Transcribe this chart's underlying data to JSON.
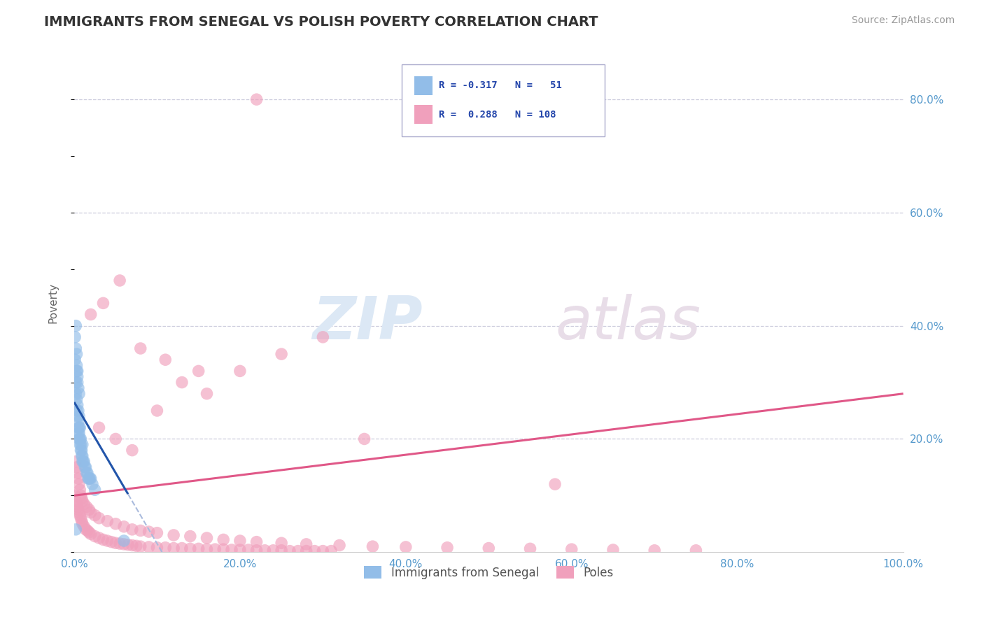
{
  "title": "IMMIGRANTS FROM SENEGAL VS POLISH POVERTY CORRELATION CHART",
  "source": "Source: ZipAtlas.com",
  "ylabel": "Poverty",
  "watermark": "ZIPatlas",
  "legend_label1": "Immigrants from Senegal",
  "legend_label2": "Poles",
  "color_senegal": "#92bde8",
  "color_poles": "#f0a0bc",
  "trendline_senegal": "#2255aa",
  "trendline_poles": "#e05888",
  "trendline_senegal_dashed": "#aabbdd",
  "xlim": [
    0.0,
    1.0
  ],
  "ylim": [
    0.0,
    0.88
  ],
  "xticks": [
    0.0,
    0.2,
    0.4,
    0.6,
    0.8,
    1.0
  ],
  "yticks": [
    0.2,
    0.4,
    0.6,
    0.8
  ],
  "xticklabels": [
    "0.0%",
    "20.0%",
    "40.0%",
    "60.0%",
    "80.0%",
    "100.0%"
  ],
  "yticklabels": [
    "20.0%",
    "40.0%",
    "60.0%",
    "80.0%"
  ],
  "tick_color": "#5599cc",
  "grid_color": "#ccccdd",
  "senegal_x": [
    0.001,
    0.002,
    0.002,
    0.003,
    0.003,
    0.003,
    0.004,
    0.004,
    0.004,
    0.005,
    0.005,
    0.005,
    0.005,
    0.006,
    0.006,
    0.006,
    0.006,
    0.007,
    0.007,
    0.007,
    0.008,
    0.008,
    0.008,
    0.009,
    0.009,
    0.01,
    0.01,
    0.01,
    0.011,
    0.012,
    0.013,
    0.014,
    0.015,
    0.016,
    0.017,
    0.018,
    0.019,
    0.02,
    0.022,
    0.025,
    0.002,
    0.003,
    0.004,
    0.004,
    0.005,
    0.006,
    0.001,
    0.002,
    0.003,
    0.002,
    0.06
  ],
  "senegal_y": [
    0.34,
    0.3,
    0.28,
    0.27,
    0.25,
    0.33,
    0.26,
    0.24,
    0.3,
    0.23,
    0.22,
    0.25,
    0.21,
    0.22,
    0.21,
    0.2,
    0.24,
    0.2,
    0.19,
    0.22,
    0.19,
    0.18,
    0.2,
    0.18,
    0.17,
    0.17,
    0.16,
    0.19,
    0.16,
    0.16,
    0.15,
    0.15,
    0.14,
    0.14,
    0.13,
    0.13,
    0.13,
    0.13,
    0.12,
    0.11,
    0.36,
    0.35,
    0.32,
    0.31,
    0.29,
    0.28,
    0.38,
    0.4,
    0.32,
    0.04,
    0.02
  ],
  "poles_x": [
    0.001,
    0.002,
    0.003,
    0.004,
    0.005,
    0.006,
    0.007,
    0.008,
    0.009,
    0.01,
    0.012,
    0.014,
    0.016,
    0.018,
    0.02,
    0.025,
    0.03,
    0.035,
    0.04,
    0.045,
    0.05,
    0.055,
    0.06,
    0.065,
    0.07,
    0.075,
    0.08,
    0.09,
    0.1,
    0.11,
    0.12,
    0.13,
    0.14,
    0.15,
    0.16,
    0.17,
    0.18,
    0.19,
    0.2,
    0.21,
    0.22,
    0.23,
    0.24,
    0.25,
    0.26,
    0.27,
    0.28,
    0.29,
    0.3,
    0.31,
    0.002,
    0.003,
    0.004,
    0.005,
    0.006,
    0.007,
    0.008,
    0.009,
    0.01,
    0.012,
    0.015,
    0.018,
    0.02,
    0.025,
    0.03,
    0.04,
    0.05,
    0.06,
    0.07,
    0.08,
    0.09,
    0.1,
    0.12,
    0.14,
    0.16,
    0.18,
    0.2,
    0.22,
    0.25,
    0.28,
    0.32,
    0.36,
    0.4,
    0.45,
    0.5,
    0.55,
    0.6,
    0.65,
    0.7,
    0.75,
    0.03,
    0.05,
    0.07,
    0.1,
    0.13,
    0.16,
    0.2,
    0.25,
    0.3,
    0.35,
    0.02,
    0.035,
    0.055,
    0.08,
    0.11,
    0.15,
    0.22,
    0.58
  ],
  "poles_y": [
    0.1,
    0.09,
    0.085,
    0.08,
    0.075,
    0.07,
    0.065,
    0.06,
    0.055,
    0.05,
    0.045,
    0.04,
    0.038,
    0.035,
    0.032,
    0.028,
    0.025,
    0.022,
    0.02,
    0.018,
    0.016,
    0.015,
    0.014,
    0.013,
    0.012,
    0.011,
    0.01,
    0.009,
    0.008,
    0.008,
    0.007,
    0.007,
    0.006,
    0.006,
    0.005,
    0.005,
    0.005,
    0.004,
    0.004,
    0.004,
    0.003,
    0.003,
    0.003,
    0.003,
    0.002,
    0.002,
    0.002,
    0.002,
    0.002,
    0.002,
    0.16,
    0.15,
    0.14,
    0.13,
    0.12,
    0.11,
    0.1,
    0.095,
    0.09,
    0.085,
    0.08,
    0.075,
    0.07,
    0.065,
    0.06,
    0.055,
    0.05,
    0.045,
    0.04,
    0.038,
    0.036,
    0.034,
    0.03,
    0.028,
    0.025,
    0.022,
    0.02,
    0.018,
    0.016,
    0.014,
    0.012,
    0.01,
    0.009,
    0.008,
    0.007,
    0.006,
    0.005,
    0.004,
    0.003,
    0.003,
    0.22,
    0.2,
    0.18,
    0.25,
    0.3,
    0.28,
    0.32,
    0.35,
    0.38,
    0.2,
    0.42,
    0.44,
    0.48,
    0.36,
    0.34,
    0.32,
    0.8,
    0.12
  ],
  "senegal_trend_x0": 0.0,
  "senegal_trend_x1": 0.065,
  "senegal_trend_b": 0.265,
  "senegal_trend_m": -2.5,
  "poles_trend_x0": 0.0,
  "poles_trend_x1": 1.0,
  "poles_trend_b": 0.1,
  "poles_trend_m": 0.18
}
